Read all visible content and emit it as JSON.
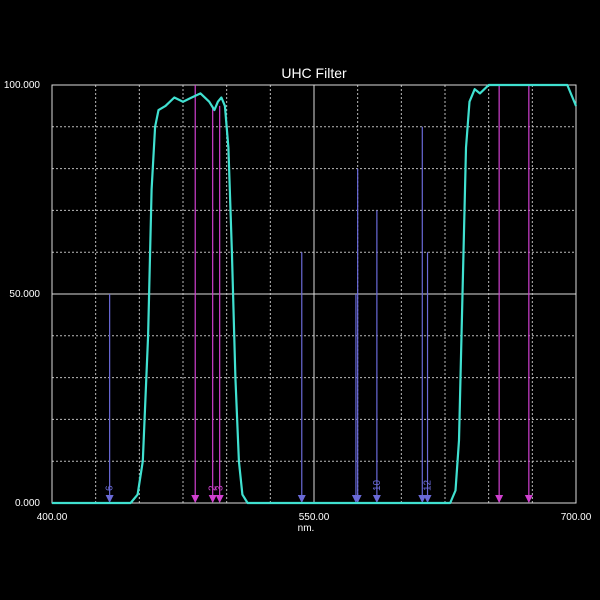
{
  "chart_data": {
    "type": "line",
    "title": "UHC Filter",
    "xlabel": "nm.",
    "xlim": [
      400,
      700
    ],
    "ylim": [
      0,
      100
    ],
    "xticks": [
      {
        "value": 400,
        "label": "400.00"
      },
      {
        "value": 550,
        "label": "550.00"
      },
      {
        "value": 700,
        "label": "700.00"
      }
    ],
    "yticks": [
      {
        "value": 0,
        "label": "0.000"
      },
      {
        "value": 50,
        "label": "50.000"
      },
      {
        "value": 100,
        "label": "100.000"
      }
    ],
    "xgrid": [
      425,
      450,
      475,
      500,
      525,
      575,
      600,
      625,
      650,
      675
    ],
    "ygrid": [
      10,
      20,
      30,
      40,
      60,
      70,
      80,
      90
    ],
    "series": [
      {
        "color": "#40e0d0",
        "x": [
          400,
          445,
          449,
          452,
          455,
          457,
          459,
          461,
          465,
          470,
          475,
          480,
          485,
          490,
          493,
          495,
          497,
          499,
          501,
          503,
          505,
          507,
          509,
          512,
          628,
          631,
          633,
          635,
          637,
          639,
          642,
          645,
          650,
          660,
          680,
          695,
          698,
          700
        ],
        "values": [
          0,
          0,
          2,
          10,
          40,
          75,
          90,
          94,
          95,
          97,
          96,
          97,
          98,
          96,
          94,
          96,
          97,
          95,
          85,
          60,
          30,
          10,
          2,
          0,
          0,
          3,
          15,
          50,
          85,
          96,
          99,
          98,
          100,
          100,
          100,
          100,
          97,
          95
        ]
      }
    ],
    "markers": [
      {
        "color": "#d040d0",
        "x": [
          482,
          492,
          496,
          656,
          673
        ],
        "values": [
          100,
          95,
          95,
          100,
          100
        ],
        "labels": [
          null,
          "2",
          "3",
          null,
          null
        ]
      },
      {
        "color": "#6a6ad8",
        "x": [
          433,
          543,
          574,
          575,
          586,
          612,
          615
        ],
        "values": [
          50,
          60,
          50,
          80,
          70,
          90,
          60
        ],
        "labels": [
          "6",
          null,
          null,
          null,
          "10",
          null,
          "12"
        ]
      }
    ]
  }
}
